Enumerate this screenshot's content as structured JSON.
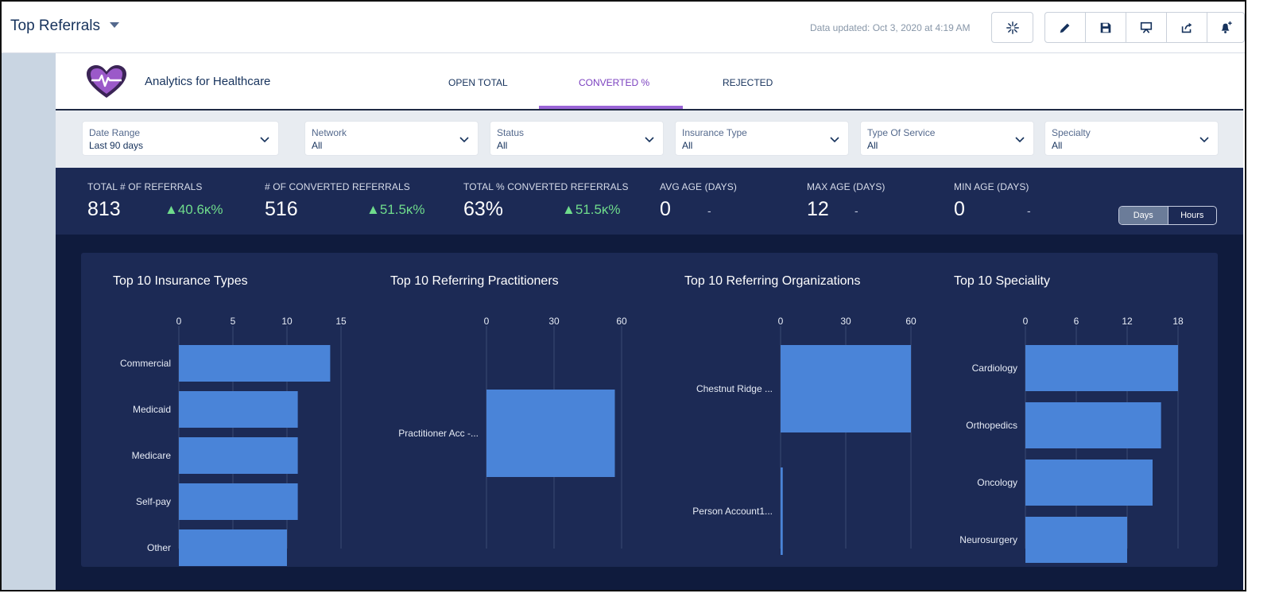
{
  "header": {
    "title": "Top Referrals",
    "updated": "Data updated: Oct 3, 2020 at 4:19 AM"
  },
  "app": {
    "name": "Analytics for Healthcare",
    "tabs": [
      "OPEN TOTAL",
      "CONVERTED %",
      "REJECTED"
    ],
    "active_tab": "CONVERTED %"
  },
  "filters": [
    {
      "label": "Date Range",
      "value": "Last 90 days"
    },
    {
      "label": "Network",
      "value": "All"
    },
    {
      "label": "Status",
      "value": "All"
    },
    {
      "label": "Insurance Type",
      "value": "All"
    },
    {
      "label": "Type Of Service",
      "value": "All"
    },
    {
      "label": "Specialty",
      "value": "All"
    }
  ],
  "kpis": [
    {
      "label": "TOTAL # OF REFERRALS",
      "value": "813",
      "delta": "▲40.6κ%"
    },
    {
      "label": "# OF CONVERTED REFERRALS",
      "value": "516",
      "delta": "▲51.5κ%"
    },
    {
      "label": "TOTAL % CONVERTED REFERRALS",
      "value": "63%",
      "delta": "▲51.5κ%"
    },
    {
      "label": "AVG AGE (DAYS)",
      "value": "0",
      "delta": "-"
    },
    {
      "label": "MAX AGE (DAYS)",
      "value": "12",
      "delta": "-"
    },
    {
      "label": "MIN AGE (DAYS)",
      "value": "0",
      "delta": "-"
    }
  ],
  "toggle": {
    "days": "Days",
    "hours": "Hours",
    "active": "Days"
  },
  "colors": {
    "bar": "#4a84d8",
    "kpi_bg": "#1c2a55",
    "chart_bg": "#0f1b3d",
    "accent": "#9a64d6",
    "delta": "#6fdc8c"
  },
  "chart_data": [
    {
      "type": "bar",
      "orientation": "horizontal",
      "title": "Top 10 Insurance Types",
      "categories": [
        "Commercial",
        "Medicaid",
        "Medicare",
        "Self-pay",
        "Other"
      ],
      "values": [
        14,
        11,
        11,
        11,
        10
      ],
      "ticks": [
        0,
        5,
        10,
        15
      ],
      "xlim": [
        0,
        15
      ]
    },
    {
      "type": "bar",
      "orientation": "horizontal",
      "title": "Top 10 Referring Practitioners",
      "categories": [
        "Practitioner Acc -..."
      ],
      "values": [
        57
      ],
      "ticks": [
        0,
        30,
        60
      ],
      "xlim": [
        0,
        60
      ]
    },
    {
      "type": "bar",
      "orientation": "horizontal",
      "title": "Top 10 Referring Organizations",
      "categories": [
        "Chestnut Ridge ...",
        "Person Account1..."
      ],
      "values": [
        60,
        1
      ],
      "ticks": [
        0,
        30,
        60
      ],
      "xlim": [
        0,
        60
      ]
    },
    {
      "type": "bar",
      "orientation": "horizontal",
      "title": "Top 10 Speciality",
      "categories": [
        "Cardiology",
        "Orthopedics",
        "Oncology",
        "Neurosurgery"
      ],
      "values": [
        18,
        16,
        15,
        12
      ],
      "ticks": [
        0,
        6,
        12,
        18
      ],
      "xlim": [
        0,
        18
      ]
    }
  ]
}
